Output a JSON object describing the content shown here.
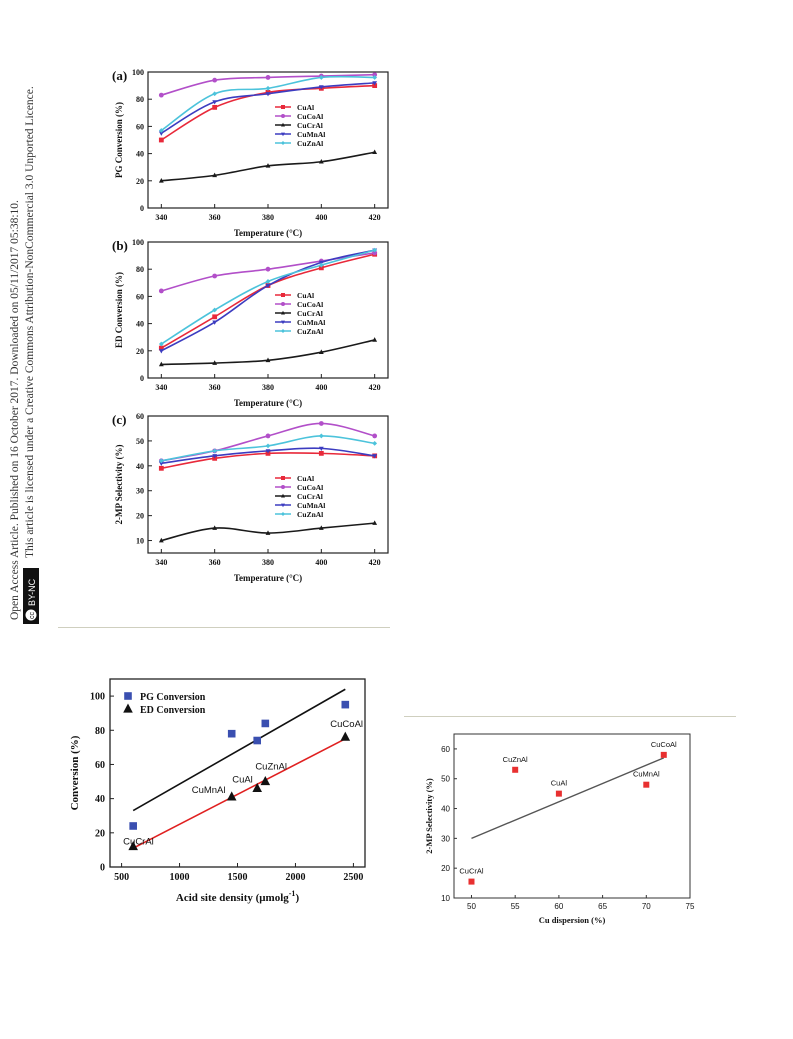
{
  "sidebar": {
    "line1": "Open Access Article. Published on 16 October 2017. Downloaded on 05/11/2017 05:38:10.",
    "line2": "This article is licensed under a Creative Commons Attribution-NonCommercial 3.0 Unported Licence.",
    "badge": "BY-NC"
  },
  "legend_labels": [
    "CuAl",
    "CuCoAl",
    "CuCrAl",
    "CuMnAl",
    "CuZnAl"
  ],
  "colors": {
    "CuAl": "#e8293a",
    "CuCoAl": "#b24fc9",
    "CuCrAl": "#1a1a1a",
    "CuMnAl": "#3c3cc0",
    "CuZnAl": "#4cc3db",
    "pg_marker": "#3a4fb0",
    "ed_marker": "#111111",
    "line_black": "#111111",
    "line_red": "#e02020",
    "sel_marker": "#e83030",
    "sel_line": "#555555"
  },
  "chart_data": [
    {
      "type": "line",
      "panel": "(a)",
      "xlabel": "Temperature (°C)",
      "ylabel": "PG Conversion (%)",
      "x": [
        340,
        360,
        380,
        400,
        420
      ],
      "xlim": [
        335,
        425
      ],
      "ylim": [
        0,
        100
      ],
      "xticks": [
        340,
        360,
        380,
        400,
        420
      ],
      "yticks": [
        0,
        20,
        40,
        60,
        80,
        100
      ],
      "legend_position": "right",
      "series": [
        {
          "name": "CuAl",
          "values": [
            50,
            74,
            85,
            88,
            90
          ]
        },
        {
          "name": "CuCoAl",
          "values": [
            83,
            94,
            96,
            97,
            98
          ]
        },
        {
          "name": "CuCrAl",
          "values": [
            20,
            24,
            31,
            34,
            41
          ]
        },
        {
          "name": "CuMnAl",
          "values": [
            55,
            78,
            84,
            89,
            92
          ]
        },
        {
          "name": "CuZnAl",
          "values": [
            57,
            84,
            88,
            96,
            96
          ]
        }
      ]
    },
    {
      "type": "line",
      "panel": "(b)",
      "xlabel": "Temperature (°C)",
      "ylabel": "ED Conversion (%)",
      "x": [
        340,
        360,
        380,
        400,
        420
      ],
      "xlim": [
        335,
        425
      ],
      "ylim": [
        0,
        100
      ],
      "xticks": [
        340,
        360,
        380,
        400,
        420
      ],
      "yticks": [
        0,
        20,
        40,
        60,
        80,
        100
      ],
      "legend_position": "right",
      "series": [
        {
          "name": "CuAl",
          "values": [
            22,
            45,
            68,
            81,
            91
          ]
        },
        {
          "name": "CuCoAl",
          "values": [
            64,
            75,
            80,
            86,
            92
          ]
        },
        {
          "name": "CuCrAl",
          "values": [
            10,
            11,
            13,
            19,
            28
          ]
        },
        {
          "name": "CuMnAl",
          "values": [
            20,
            41,
            68,
            85,
            94
          ]
        },
        {
          "name": "CuZnAl",
          "values": [
            25,
            50,
            71,
            83,
            94
          ]
        }
      ]
    },
    {
      "type": "line",
      "panel": "(c)",
      "xlabel": "Temperature (°C)",
      "ylabel": "2-MP Selectivity (%)",
      "x": [
        340,
        360,
        380,
        400,
        420
      ],
      "xlim": [
        335,
        425
      ],
      "ylim": [
        5,
        60
      ],
      "xticks": [
        340,
        360,
        380,
        400,
        420
      ],
      "yticks": [
        10,
        20,
        30,
        40,
        50,
        60
      ],
      "legend_position": "right",
      "series": [
        {
          "name": "CuAl",
          "values": [
            39,
            43,
            45,
            45,
            44
          ]
        },
        {
          "name": "CuCoAl",
          "values": [
            42,
            46,
            52,
            57,
            52
          ]
        },
        {
          "name": "CuCrAl",
          "values": [
            10,
            15,
            13,
            15,
            17
          ]
        },
        {
          "name": "CuMnAl",
          "values": [
            41,
            44,
            46,
            47,
            44
          ]
        },
        {
          "name": "CuZnAl",
          "values": [
            42,
            46,
            48,
            52,
            49
          ]
        }
      ]
    },
    {
      "type": "scatter",
      "xlabel": "Acid site density (μmolg",
      "xlabel_sup": "-1",
      "xlabel_end": ")",
      "ylabel": "Conversion (%)",
      "xlim": [
        400,
        2600
      ],
      "ylim": [
        0,
        110
      ],
      "xticks": [
        500,
        1000,
        1500,
        2000,
        2500
      ],
      "yticks": [
        0,
        20,
        40,
        60,
        80,
        100
      ],
      "legend_position": "top-left",
      "series": [
        {
          "name": "PG Conversion",
          "marker": "square",
          "x": [
            600,
            1450,
            1670,
            1740,
            2430
          ],
          "values": [
            24,
            78,
            74,
            84,
            95
          ],
          "fit": [
            [
              600,
              33
            ],
            [
              2430,
              104
            ]
          ]
        },
        {
          "name": "ED Conversion",
          "marker": "triangle",
          "x": [
            600,
            1450,
            1670,
            1740,
            2430
          ],
          "values": [
            12,
            41,
            46,
            50,
            76
          ],
          "fit": [
            [
              600,
              11
            ],
            [
              2430,
              75
            ]
          ]
        }
      ],
      "point_labels": [
        {
          "text": "CuCrAl",
          "x": 600,
          "y": 12
        },
        {
          "text": "CuMnAl",
          "x": 1450,
          "y": 41
        },
        {
          "text": "CuAl",
          "x": 1670,
          "y": 46
        },
        {
          "text": "CuZnAl",
          "x": 1740,
          "y": 50
        },
        {
          "text": "CuCoAl",
          "x": 2430,
          "y": 76
        }
      ]
    },
    {
      "type": "scatter",
      "xlabel": "Cu dispersion (%)",
      "ylabel": "2-MP Selectivity (%)",
      "xlim": [
        48,
        75
      ],
      "ylim": [
        10,
        65
      ],
      "xticks": [
        50,
        55,
        60,
        65,
        70,
        75
      ],
      "yticks": [
        10,
        20,
        30,
        40,
        50,
        60
      ],
      "points": [
        {
          "label": "CuCrAl",
          "x": 50,
          "y": 15.5
        },
        {
          "label": "CuZnAl",
          "x": 55,
          "y": 53
        },
        {
          "label": "CuAl",
          "x": 60,
          "y": 45
        },
        {
          "label": "CuMnAl",
          "x": 70,
          "y": 48
        },
        {
          "label": "CuCoAl",
          "x": 72,
          "y": 58
        }
      ],
      "fit": [
        [
          50,
          30
        ],
        [
          72,
          57
        ]
      ]
    }
  ]
}
